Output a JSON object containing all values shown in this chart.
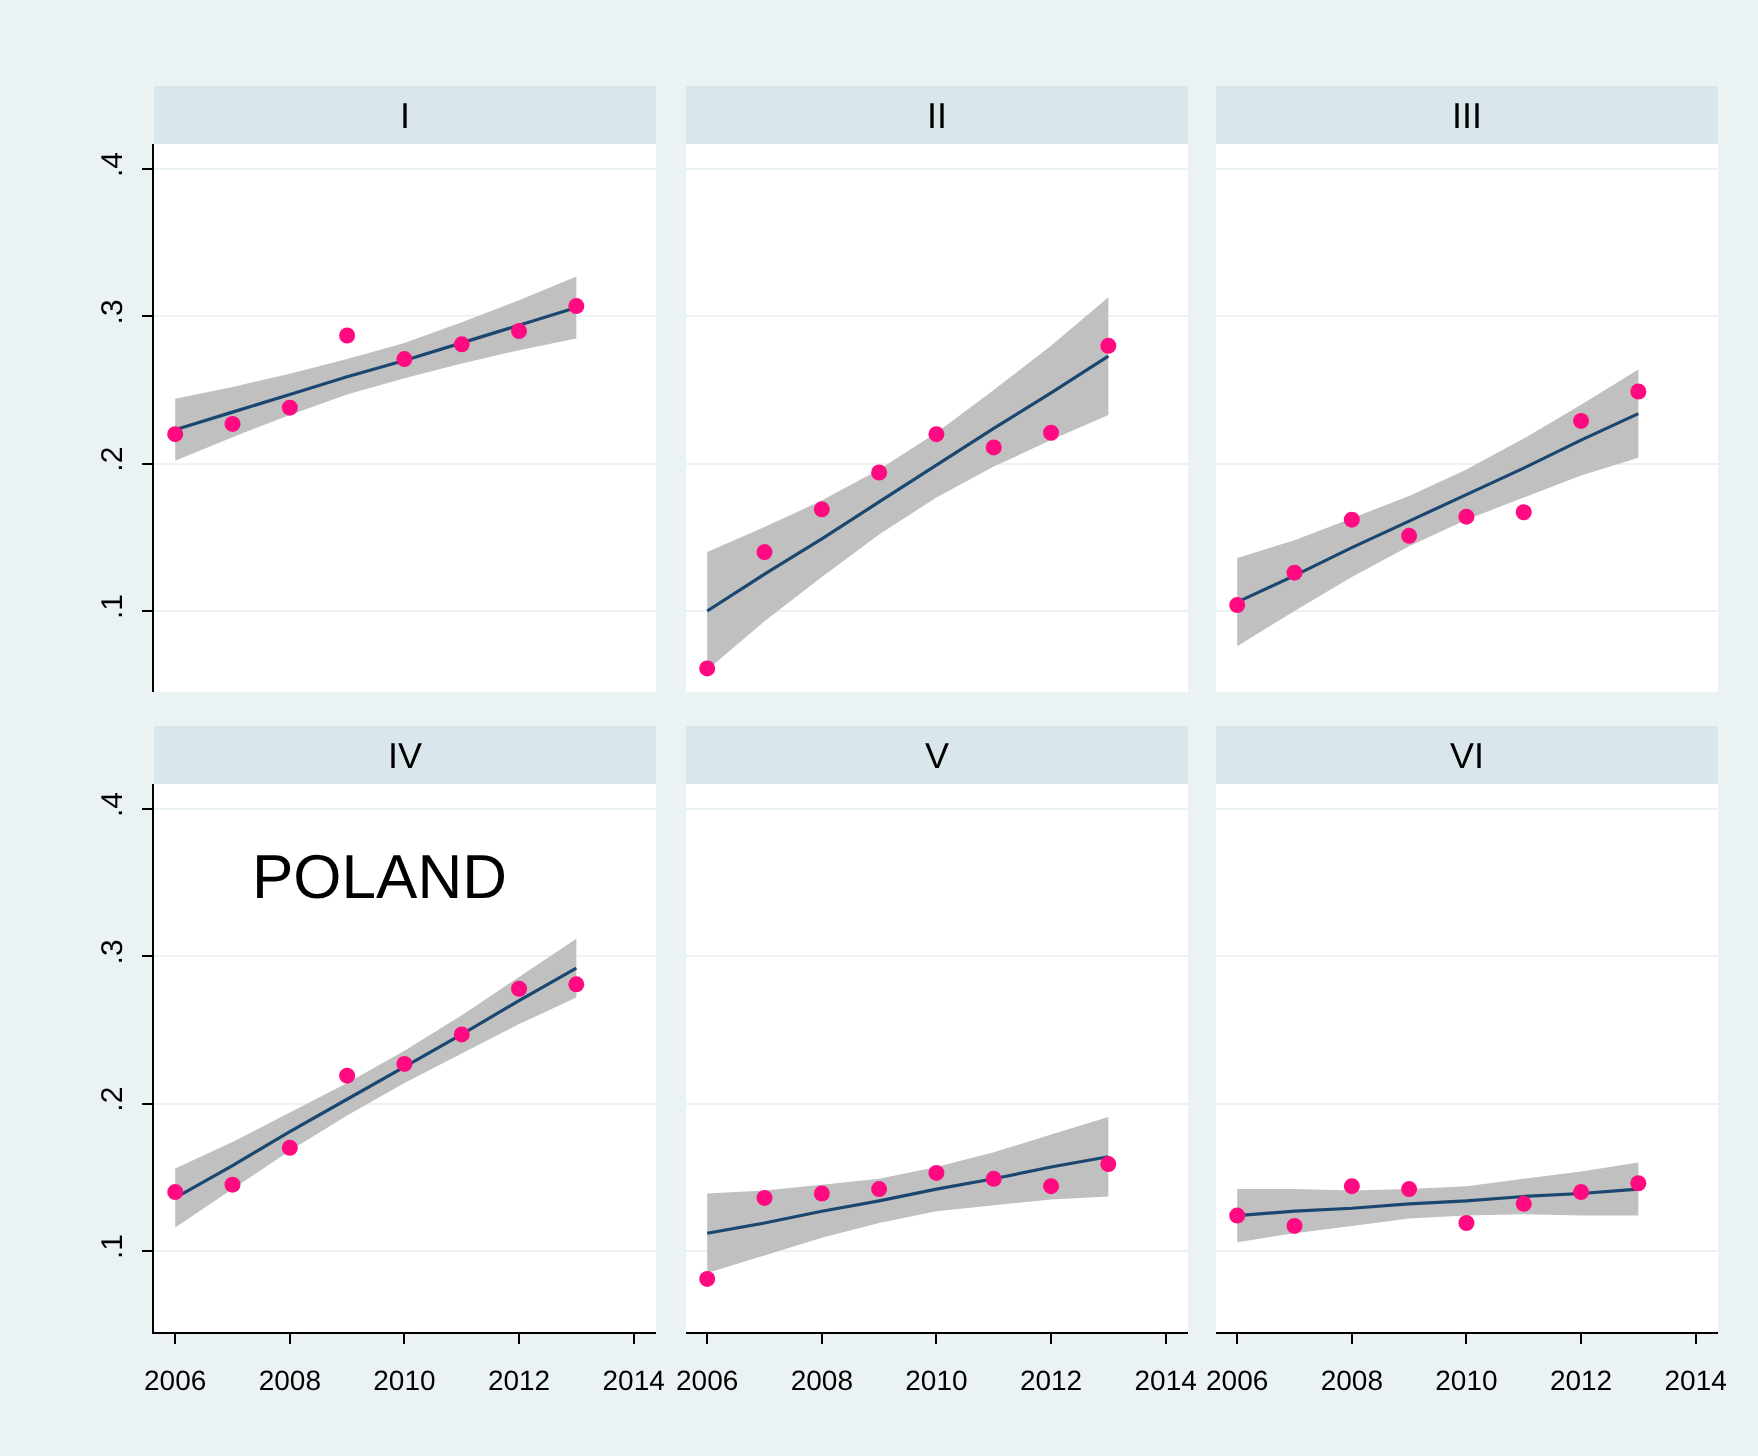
{
  "chart_data": [
    {
      "type": "scatter",
      "title": "I",
      "x": [
        2006,
        2007,
        2008,
        2009,
        2010,
        2011,
        2012,
        2013
      ],
      "series": [
        {
          "type": "line",
          "color": "#1a476f",
          "marker": "none",
          "values": [
            0.223,
            0.235,
            0.247,
            0.259,
            0.27,
            0.282,
            0.294,
            0.306
          ],
          "lower": [
            0.202,
            0.218,
            0.233,
            0.247,
            0.258,
            0.268,
            0.277,
            0.285
          ],
          "upper": [
            0.244,
            0.252,
            0.261,
            0.271,
            0.282,
            0.296,
            0.311,
            0.327
          ]
        },
        {
          "color": "#ff0a80",
          "marker": "circle",
          "values": [
            0.22,
            0.227,
            0.238,
            0.287,
            0.271,
            0.281,
            0.29,
            0.307
          ]
        }
      ],
      "xlim": [
        2005.63,
        2014.39
      ],
      "xticks": [
        2006,
        2008,
        2010,
        2012,
        2014
      ],
      "ylim": [
        0.045,
        0.417
      ],
      "yticks": [
        {
          "value": 0.1,
          "label": ".1"
        },
        {
          "value": 0.2,
          "label": ".2"
        },
        {
          "value": 0.3,
          "label": ".3"
        },
        {
          "value": 0.4,
          "label": ".4"
        }
      ],
      "grid": "y",
      "tick_labels": "y"
    },
    {
      "type": "scatter",
      "title": "II",
      "x": [
        2006,
        2007,
        2008,
        2009,
        2010,
        2011,
        2012,
        2013
      ],
      "series": [
        {
          "type": "line",
          "color": "#1a476f",
          "marker": "none",
          "values": [
            0.1,
            0.125,
            0.149,
            0.174,
            0.199,
            0.224,
            0.248,
            0.273
          ],
          "lower": [
            0.06,
            0.093,
            0.123,
            0.152,
            0.177,
            0.198,
            0.216,
            0.233
          ],
          "upper": [
            0.14,
            0.157,
            0.175,
            0.196,
            0.221,
            0.25,
            0.28,
            0.313
          ]
        },
        {
          "color": "#ff0a80",
          "marker": "circle",
          "values": [
            0.061,
            0.14,
            0.169,
            0.194,
            0.22,
            0.211,
            0.221,
            0.28
          ]
        }
      ],
      "xlim": [
        2005.63,
        2014.39
      ],
      "xticks": [
        2006,
        2008,
        2010,
        2012,
        2014
      ],
      "ylim": [
        0.045,
        0.417
      ],
      "yticks": [
        0.1,
        0.2,
        0.3,
        0.4
      ],
      "grid": "y",
      "tick_labels": false
    },
    {
      "type": "scatter",
      "title": "III",
      "x": [
        2006,
        2007,
        2008,
        2009,
        2010,
        2011,
        2012,
        2013
      ],
      "series": [
        {
          "type": "line",
          "color": "#1a476f",
          "marker": "none",
          "values": [
            0.106,
            0.124,
            0.143,
            0.161,
            0.179,
            0.197,
            0.216,
            0.234
          ],
          "lower": [
            0.076,
            0.1,
            0.123,
            0.144,
            0.162,
            0.177,
            0.192,
            0.204
          ],
          "upper": [
            0.136,
            0.148,
            0.163,
            0.178,
            0.196,
            0.217,
            0.24,
            0.264
          ]
        },
        {
          "color": "#ff0a80",
          "marker": "circle",
          "values": [
            0.104,
            0.126,
            0.162,
            0.151,
            0.164,
            0.167,
            0.229,
            0.249
          ]
        }
      ],
      "xlim": [
        2005.63,
        2014.39
      ],
      "xticks": [
        2006,
        2008,
        2010,
        2012,
        2014
      ],
      "ylim": [
        0.045,
        0.417
      ],
      "yticks": [
        0.1,
        0.2,
        0.3,
        0.4
      ],
      "grid": "y",
      "tick_labels": false
    },
    {
      "type": "scatter",
      "title": "IV",
      "annotations": [
        "POLAND"
      ],
      "x": [
        2006,
        2007,
        2008,
        2009,
        2010,
        2011,
        2012,
        2013
      ],
      "series": [
        {
          "type": "line",
          "color": "#1a476f",
          "marker": "none",
          "values": [
            0.136,
            0.158,
            0.181,
            0.203,
            0.225,
            0.247,
            0.27,
            0.292
          ],
          "lower": [
            0.116,
            0.142,
            0.168,
            0.192,
            0.214,
            0.234,
            0.254,
            0.272
          ],
          "upper": [
            0.156,
            0.174,
            0.194,
            0.214,
            0.236,
            0.26,
            0.286,
            0.312
          ]
        },
        {
          "color": "#ff0a80",
          "marker": "circle",
          "values": [
            0.14,
            0.145,
            0.17,
            0.219,
            0.227,
            0.247,
            0.278,
            0.281
          ]
        }
      ],
      "xlim": [
        2005.63,
        2014.39
      ],
      "xticks": [
        2006,
        2008,
        2010,
        2012,
        2014
      ],
      "ylim": [
        0.045,
        0.417
      ],
      "yticks": [
        {
          "value": 0.1,
          "label": ".1"
        },
        {
          "value": 0.2,
          "label": ".2"
        },
        {
          "value": 0.3,
          "label": ".3"
        },
        {
          "value": 0.4,
          "label": ".4"
        }
      ],
      "grid": "y"
    },
    {
      "type": "scatter",
      "title": "V",
      "x": [
        2006,
        2007,
        2008,
        2009,
        2010,
        2011,
        2012,
        2013
      ],
      "series": [
        {
          "type": "line",
          "color": "#1a476f",
          "marker": "none",
          "values": [
            0.112,
            0.119,
            0.127,
            0.134,
            0.142,
            0.149,
            0.157,
            0.164
          ],
          "lower": [
            0.085,
            0.097,
            0.109,
            0.119,
            0.127,
            0.131,
            0.135,
            0.137
          ],
          "upper": [
            0.139,
            0.141,
            0.145,
            0.149,
            0.157,
            0.167,
            0.179,
            0.191
          ]
        },
        {
          "color": "#ff0a80",
          "marker": "circle",
          "values": [
            0.081,
            0.136,
            0.139,
            0.142,
            0.153,
            0.149,
            0.144,
            0.159
          ]
        }
      ],
      "xlim": [
        2005.63,
        2014.39
      ],
      "xticks": [
        2006,
        2008,
        2010,
        2012,
        2014
      ],
      "ylim": [
        0.045,
        0.417
      ],
      "yticks": [
        0.1,
        0.2,
        0.3,
        0.4
      ],
      "grid": "y",
      "tick_labels": "x"
    },
    {
      "type": "scatter",
      "title": "VI",
      "x": [
        2006,
        2007,
        2008,
        2009,
        2010,
        2011,
        2012,
        2013
      ],
      "series": [
        {
          "type": "line",
          "color": "#1a476f",
          "marker": "none",
          "values": [
            0.124,
            0.127,
            0.129,
            0.132,
            0.134,
            0.137,
            0.139,
            0.142
          ],
          "lower": [
            0.106,
            0.112,
            0.117,
            0.122,
            0.124,
            0.125,
            0.124,
            0.124
          ],
          "upper": [
            0.142,
            0.142,
            0.141,
            0.142,
            0.144,
            0.149,
            0.154,
            0.16
          ]
        },
        {
          "color": "#ff0a80",
          "marker": "circle",
          "values": [
            0.124,
            0.117,
            0.144,
            0.142,
            0.119,
            0.132,
            0.14,
            0.146
          ]
        }
      ],
      "xlim": [
        2005.63,
        2014.39
      ],
      "xticks": [
        2006,
        2008,
        2010,
        2012,
        2014
      ],
      "ylim": [
        0.045,
        0.417
      ],
      "yticks": [
        0.1,
        0.2,
        0.3,
        0.4
      ],
      "grid": "y",
      "tick_labels": "x"
    }
  ]
}
